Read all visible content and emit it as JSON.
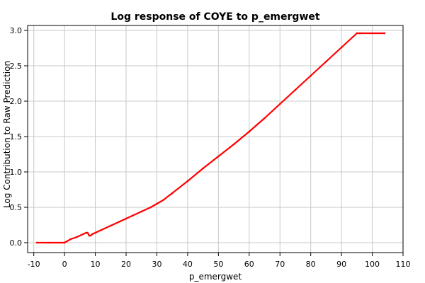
{
  "chart_data": {
    "type": "line",
    "title": "Log response of COYE to p_emergwet",
    "xlabel": "p_emergwet",
    "ylabel": "Log Contribution to Raw Prediction",
    "xlim": [
      -12,
      110
    ],
    "ylim": [
      -0.14,
      3.07
    ],
    "x_ticks": [
      -10,
      0,
      10,
      20,
      30,
      40,
      50,
      60,
      70,
      80,
      90,
      100,
      110
    ],
    "y_ticks": [
      0.0,
      0.5,
      1.0,
      1.5,
      2.0,
      2.5,
      3.0
    ],
    "x_tick_labels": [
      "-10",
      "0",
      "10",
      "20",
      "30",
      "40",
      "50",
      "60",
      "70",
      "80",
      "90",
      "100",
      "110"
    ],
    "y_tick_labels": [
      "0.0",
      "0.5",
      "1.0",
      "1.5",
      "2.0",
      "2.5",
      "3.0"
    ],
    "grid": true,
    "line_color": "#ff0000",
    "axis_color": "#000000",
    "grid_color": "#c8c8c8",
    "series": [
      {
        "x": [
          -9,
          -5,
          -1,
          0,
          2,
          4,
          6,
          7,
          7.5,
          8,
          8.5,
          9,
          10,
          12,
          15,
          18,
          20,
          22,
          25,
          28,
          30,
          32,
          35,
          40,
          45,
          50,
          55,
          60,
          65,
          70,
          75,
          80,
          85,
          90,
          95,
          96,
          100,
          104
        ],
        "y": [
          0.0,
          0.0,
          0.0,
          0.0,
          0.05,
          0.08,
          0.12,
          0.14,
          0.14,
          0.1,
          0.1,
          0.12,
          0.14,
          0.18,
          0.24,
          0.3,
          0.34,
          0.38,
          0.44,
          0.5,
          0.55,
          0.6,
          0.7,
          0.87,
          1.05,
          1.22,
          1.39,
          1.57,
          1.76,
          1.96,
          2.16,
          2.36,
          2.56,
          2.76,
          2.96,
          2.96,
          2.96,
          2.96
        ]
      }
    ]
  }
}
